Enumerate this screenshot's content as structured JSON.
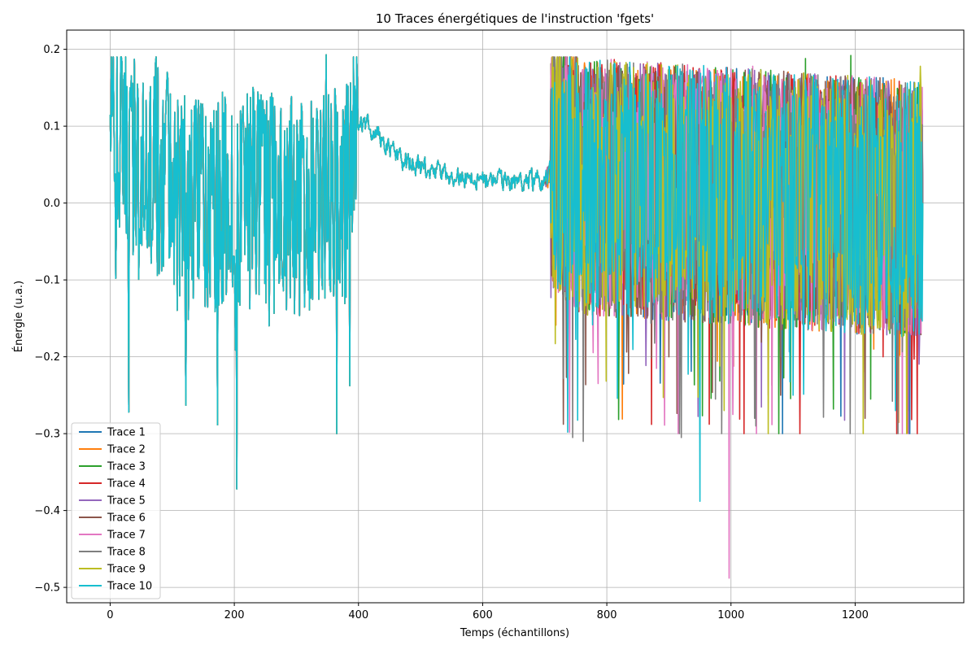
{
  "chart_data": {
    "type": "line",
    "title": "10 Traces énergétiques de l'instruction 'fgets'",
    "xlabel": "Temps (échantillons)",
    "ylabel": "Énergie (u.a.)",
    "xlim": [
      -70,
      1375
    ],
    "ylim": [
      -0.52,
      0.225
    ],
    "xticks": [
      0,
      200,
      400,
      600,
      800,
      1000,
      1200
    ],
    "yticks": [
      -0.5,
      -0.4,
      -0.3,
      -0.2,
      -0.1,
      0.0,
      0.1,
      0.2
    ],
    "ytick_labels": [
      "−0.5",
      "−0.4",
      "−0.3",
      "−0.2",
      "−0.1",
      "0.0",
      "0.1",
      "0.2"
    ],
    "grid": true,
    "legend_position": "lower-left",
    "n_samples": 1310,
    "common_segment_end": 700,
    "common_profile": [
      {
        "x": 0,
        "y": 0.115
      },
      {
        "x": 20,
        "y": 0.1
      },
      {
        "x": 40,
        "y": 0.05
      },
      {
        "x": 70,
        "y": 0.06
      },
      {
        "x": 120,
        "y": 0.0
      },
      {
        "x": 200,
        "y": 0.02
      },
      {
        "x": 300,
        "y": 0.0
      },
      {
        "x": 380,
        "y": 0.02
      },
      {
        "x": 395,
        "y": 0.09
      },
      {
        "x": 410,
        "y": 0.105
      },
      {
        "x": 430,
        "y": 0.09
      },
      {
        "x": 450,
        "y": 0.07
      },
      {
        "x": 470,
        "y": 0.055
      },
      {
        "x": 500,
        "y": 0.045
      },
      {
        "x": 550,
        "y": 0.035
      },
      {
        "x": 600,
        "y": 0.03
      },
      {
        "x": 650,
        "y": 0.028
      },
      {
        "x": 700,
        "y": 0.03
      },
      {
        "x": 720,
        "y": 0.06
      },
      {
        "x": 760,
        "y": 0.03
      },
      {
        "x": 1300,
        "y": 0.0
      },
      {
        "x": 1310,
        "y": 0.0
      }
    ],
    "notable_extremes": [
      {
        "x": 30,
        "y": -0.272
      },
      {
        "x": 122,
        "y": -0.263
      },
      {
        "x": 204,
        "y": -0.372
      },
      {
        "x": 348,
        "y": 0.193
      },
      {
        "x": 745,
        "y": -0.305
      },
      {
        "x": 762,
        "y": -0.31
      },
      {
        "x": 950,
        "y": -0.388
      },
      {
        "x": 997,
        "y": -0.488
      },
      {
        "x": 1003,
        "y": -0.275
      },
      {
        "x": 1165,
        "y": -0.268
      },
      {
        "x": 1193,
        "y": 0.192
      },
      {
        "x": 1305,
        "y": 0.178
      }
    ],
    "series": [
      {
        "name": "Trace 1",
        "color": "#1f77b4",
        "seed": 101,
        "extra_spikes": [
          {
            "x": 1260,
            "y": -0.2
          }
        ]
      },
      {
        "name": "Trace 2",
        "color": "#ff7f0e",
        "seed": 202,
        "extra_spikes": [
          {
            "x": 1230,
            "y": -0.19
          }
        ]
      },
      {
        "name": "Trace 3",
        "color": "#2ca02c",
        "seed": 303,
        "extra_spikes": [
          {
            "x": 1165,
            "y": -0.268
          },
          {
            "x": 1193,
            "y": 0.192
          },
          {
            "x": 1225,
            "y": -0.255
          },
          {
            "x": 1120,
            "y": 0.188
          }
        ]
      },
      {
        "name": "Trace 4",
        "color": "#d62728",
        "seed": 404,
        "extra_spikes": [
          {
            "x": 1295,
            "y": -0.203
          },
          {
            "x": 1213,
            "y": -0.22
          },
          {
            "x": 1245,
            "y": -0.2
          }
        ]
      },
      {
        "name": "Trace 5",
        "color": "#9467bd",
        "seed": 505,
        "extra_spikes": [
          {
            "x": 1150,
            "y": -0.15
          }
        ]
      },
      {
        "name": "Trace 6",
        "color": "#8c564b",
        "seed": 606,
        "extra_spikes": [
          {
            "x": 1080,
            "y": -0.25
          },
          {
            "x": 900,
            "y": -0.2
          }
        ]
      },
      {
        "name": "Trace 7",
        "color": "#e377c2",
        "seed": 707,
        "extra_spikes": [
          {
            "x": 997,
            "y": -0.488
          },
          {
            "x": 1003,
            "y": -0.275
          },
          {
            "x": 1060,
            "y": -0.25
          },
          {
            "x": 860,
            "y": 0.175
          },
          {
            "x": 930,
            "y": 0.18
          },
          {
            "x": 1035,
            "y": 0.178
          }
        ]
      },
      {
        "name": "Trace 8",
        "color": "#7f7f7f",
        "seed": 808,
        "extra_spikes": [
          {
            "x": 745,
            "y": -0.305
          },
          {
            "x": 762,
            "y": -0.31
          },
          {
            "x": 985,
            "y": -0.3
          },
          {
            "x": 975,
            "y": -0.255
          },
          {
            "x": 1040,
            "y": -0.29
          },
          {
            "x": 920,
            "y": -0.305
          }
        ]
      },
      {
        "name": "Trace 9",
        "color": "#bcbd22",
        "seed": 909,
        "extra_spikes": [
          {
            "x": 1305,
            "y": 0.178
          }
        ]
      },
      {
        "name": "Trace 10",
        "color": "#17becf",
        "seed": 1010,
        "extra_spikes": [
          {
            "x": 950,
            "y": -0.388
          },
          {
            "x": 1100,
            "y": -0.25
          },
          {
            "x": 1265,
            "y": -0.27
          },
          {
            "x": 737,
            "y": -0.298
          }
        ]
      }
    ]
  }
}
